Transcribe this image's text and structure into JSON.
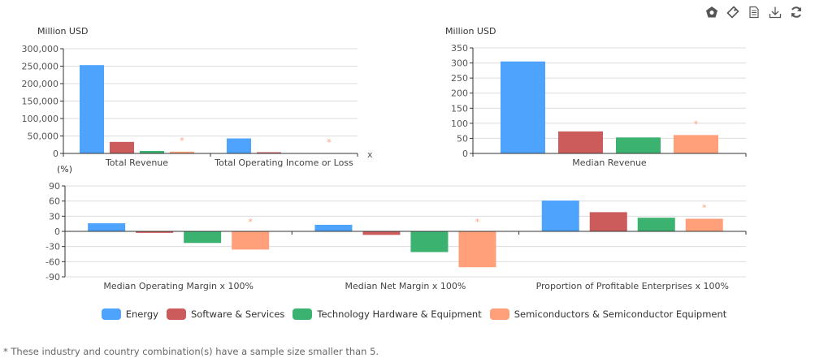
{
  "toolbar": {
    "icons": [
      "theme-icon",
      "tag-icon",
      "data-view-icon",
      "download-icon",
      "refresh-icon"
    ]
  },
  "legend": [
    {
      "name": "Energy",
      "color": "#4ea3fd"
    },
    {
      "name": "Software & Services",
      "color": "#cc5c5c"
    },
    {
      "name": "Technology Hardware & Equipment",
      "color": "#3bb26f"
    },
    {
      "name": "Semiconductors & Semiconductor Equipment",
      "color": "#ffa07a"
    }
  ],
  "footnote": "* These industry and country combination(s) have a sample size smaller than 5.",
  "chart_data": [
    {
      "type": "bar",
      "id": "totals",
      "ylabel": "Million USD",
      "xlabel": "x",
      "ylim": [
        0,
        300000
      ],
      "yticks": [
        0,
        50000,
        100000,
        150000,
        200000,
        250000,
        300000
      ],
      "ytick_labels": [
        "0",
        "50,000",
        "100,000",
        "150,000",
        "200,000",
        "250,000",
        "300,000"
      ],
      "categories": [
        "Total Revenue",
        "Total Operating Income or Loss"
      ],
      "series": [
        {
          "name": "Energy",
          "values": [
            253000,
            43000
          ]
        },
        {
          "name": "Software & Services",
          "values": [
            33000,
            3000
          ]
        },
        {
          "name": "Technology Hardware & Equipment",
          "values": [
            7000,
            0
          ]
        },
        {
          "name": "Semiconductors & Semiconductor Equipment",
          "values": [
            5000,
            0
          ],
          "small_sample": true
        }
      ],
      "grid": true
    },
    {
      "type": "bar",
      "id": "median-revenue",
      "ylabel": "Million USD",
      "ylim": [
        0,
        350
      ],
      "yticks": [
        0,
        50,
        100,
        150,
        200,
        250,
        300,
        350
      ],
      "ytick_labels": [
        "0",
        "50",
        "100",
        "150",
        "200",
        "250",
        "300",
        "350"
      ],
      "categories": [
        "Median Revenue"
      ],
      "series": [
        {
          "name": "Energy",
          "values": [
            305
          ]
        },
        {
          "name": "Software & Services",
          "values": [
            73
          ]
        },
        {
          "name": "Technology Hardware & Equipment",
          "values": [
            53
          ]
        },
        {
          "name": "Semiconductors & Semiconductor Equipment",
          "values": [
            61
          ],
          "small_sample": true
        }
      ],
      "grid": true
    },
    {
      "type": "bar",
      "id": "ratios",
      "ylabel": "(%)",
      "ylim": [
        -90,
        90
      ],
      "yticks": [
        -90,
        -60,
        -30,
        0,
        30,
        60,
        90
      ],
      "ytick_labels": [
        "-90",
        "-60",
        "-30",
        "0",
        "30",
        "60",
        "90"
      ],
      "categories": [
        "Median Operating Margin x 100%",
        "Median Net Margin x 100%",
        "Proportion of Profitable Enterprises x 100%"
      ],
      "series": [
        {
          "name": "Energy",
          "values": [
            16,
            13,
            61
          ]
        },
        {
          "name": "Software & Services",
          "values": [
            -3,
            -7,
            38
          ]
        },
        {
          "name": "Technology Hardware & Equipment",
          "values": [
            -23,
            -41,
            27
          ]
        },
        {
          "name": "Semiconductors & Semiconductor Equipment",
          "values": [
            -36,
            -71,
            25
          ],
          "small_sample": true
        }
      ],
      "grid": true
    }
  ]
}
